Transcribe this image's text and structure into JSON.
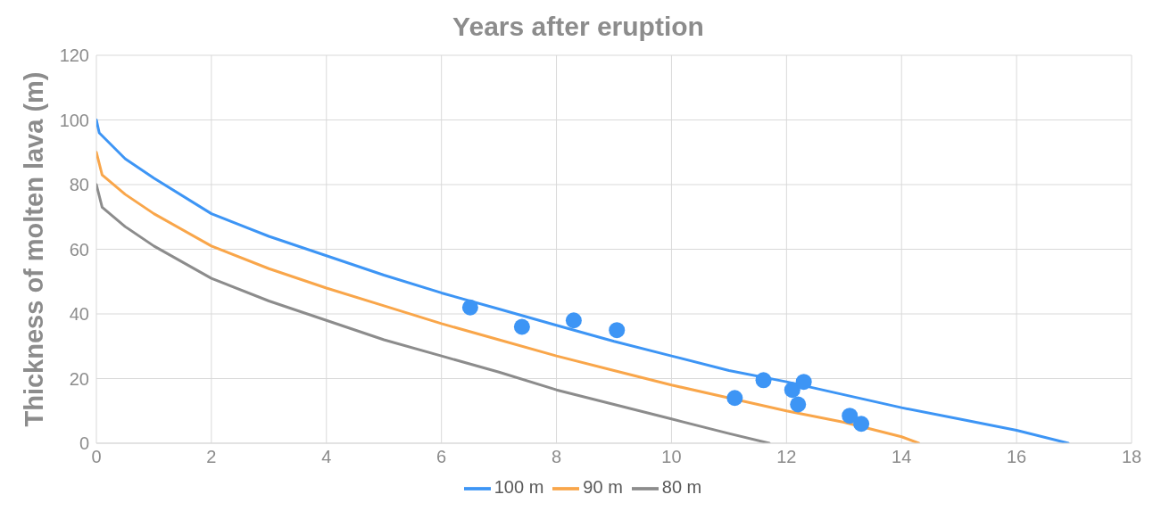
{
  "chart_data": {
    "type": "line",
    "xlabel": "Years after eruption",
    "ylabel": "Thickness of molten lava (m)",
    "xlim": [
      0,
      18
    ],
    "xticks": [
      0,
      2,
      4,
      6,
      8,
      10,
      12,
      14,
      16,
      18
    ],
    "ylim": [
      0,
      120
    ],
    "yticks": [
      0,
      20,
      40,
      60,
      80,
      100,
      120
    ],
    "grid": true,
    "legend": "bottom",
    "marker": "none",
    "line_style": "solid",
    "series": [
      {
        "name": "100 m",
        "color": "#3d95f5",
        "x": [
          0,
          0.05,
          0.5,
          1,
          2,
          3,
          4,
          5,
          6,
          7,
          8,
          9,
          10,
          11,
          12,
          13,
          14,
          15,
          16,
          16.9
        ],
        "values": [
          100,
          96,
          88,
          82,
          71,
          64,
          58,
          52,
          46.5,
          41.5,
          36.5,
          31.5,
          27,
          22.5,
          19,
          15,
          11,
          7.5,
          4,
          0
        ]
      },
      {
        "name": "90 m",
        "color": "#f9a64a",
        "x": [
          0,
          0.1,
          0.5,
          1,
          2,
          3,
          4,
          5,
          6,
          7,
          8,
          9,
          10,
          11,
          12,
          13,
          14,
          14.3
        ],
        "values": [
          90,
          83,
          77,
          71,
          61,
          54,
          48,
          42.5,
          37,
          32,
          27,
          22.5,
          18,
          14,
          10,
          6.5,
          2,
          0
        ]
      },
      {
        "name": "80 m",
        "color": "#8c8c8c",
        "x": [
          0,
          0.1,
          0.5,
          1,
          2,
          3,
          4,
          5,
          6,
          7,
          8,
          9,
          10,
          11,
          11.7
        ],
        "values": [
          80,
          73,
          67,
          61,
          51,
          44,
          38,
          32,
          27,
          22,
          16.5,
          12,
          7.5,
          3,
          0
        ]
      },
      {
        "type": "scatter",
        "marker": "circle",
        "color": "#3d95f5",
        "x": [
          6.5,
          7.4,
          8.3,
          9.05,
          11.1,
          11.6,
          12.1,
          12.2,
          12.3,
          13.1,
          13.3
        ],
        "values": [
          42,
          36,
          38,
          35,
          14,
          19.5,
          16.5,
          12,
          19,
          8.5,
          6
        ]
      }
    ]
  }
}
